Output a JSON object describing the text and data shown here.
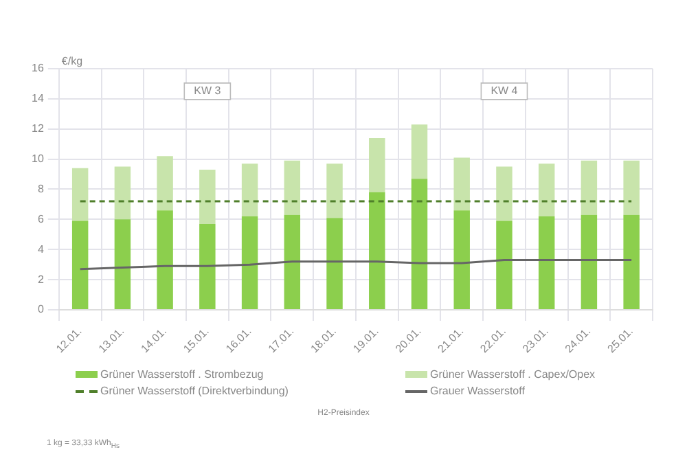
{
  "chart_data": {
    "type": "bar",
    "ylabel": "€/kg",
    "stacked": true,
    "categories": [
      "12.01.",
      "13.01.",
      "14.01.",
      "15.01.",
      "16.01.",
      "17.01.",
      "18.01.",
      "19.01.",
      "20.01.",
      "21.01.",
      "22.01.",
      "23.01.",
      "24.01.",
      "25.01."
    ],
    "series": [
      {
        "name": "Grüner Wasserstoff . Strombezug",
        "color": "#8ccf4d",
        "values": [
          5.9,
          6.0,
          6.6,
          5.7,
          6.2,
          6.3,
          6.1,
          7.8,
          8.7,
          6.6,
          5.9,
          6.2,
          6.3,
          6.3
        ]
      },
      {
        "name": "Grüner Wasserstoff . Capex/Opex",
        "color": "#c8e4ab",
        "values": [
          3.5,
          3.5,
          3.6,
          3.6,
          3.5,
          3.6,
          3.6,
          3.6,
          3.6,
          3.5,
          3.6,
          3.5,
          3.6,
          3.6
        ]
      },
      {
        "name": "Grüner Wasserstoff (Direktverbindung)",
        "type": "line",
        "color": "#4f7f2a",
        "line_style": "dashed",
        "values": [
          7.2,
          7.2,
          7.2,
          7.2,
          7.2,
          7.2,
          7.2,
          7.2,
          7.2,
          7.2,
          7.2,
          7.2,
          7.2,
          7.2
        ]
      },
      {
        "name": "Grauer Wasserstoff",
        "type": "line",
        "color": "#666666",
        "line_style": "solid",
        "values": [
          2.7,
          2.8,
          2.9,
          2.9,
          3.0,
          3.2,
          3.2,
          3.2,
          3.1,
          3.1,
          3.3,
          3.3,
          3.3,
          3.3
        ]
      }
    ],
    "ylim": [
      0,
      16
    ],
    "yticks": [
      0,
      2,
      4,
      6,
      8,
      10,
      12,
      14,
      16
    ],
    "grid": true,
    "legend": "bottom",
    "marker": "none",
    "annotations": [
      {
        "text": "KW 3",
        "x": "15.01.",
        "y": 14.5
      },
      {
        "text": "KW 4",
        "x": "22.01.",
        "y": 14.5
      },
      "H2-Preisindex",
      "1 kg = 33,33 kWh$_{Hs}$"
    ]
  }
}
